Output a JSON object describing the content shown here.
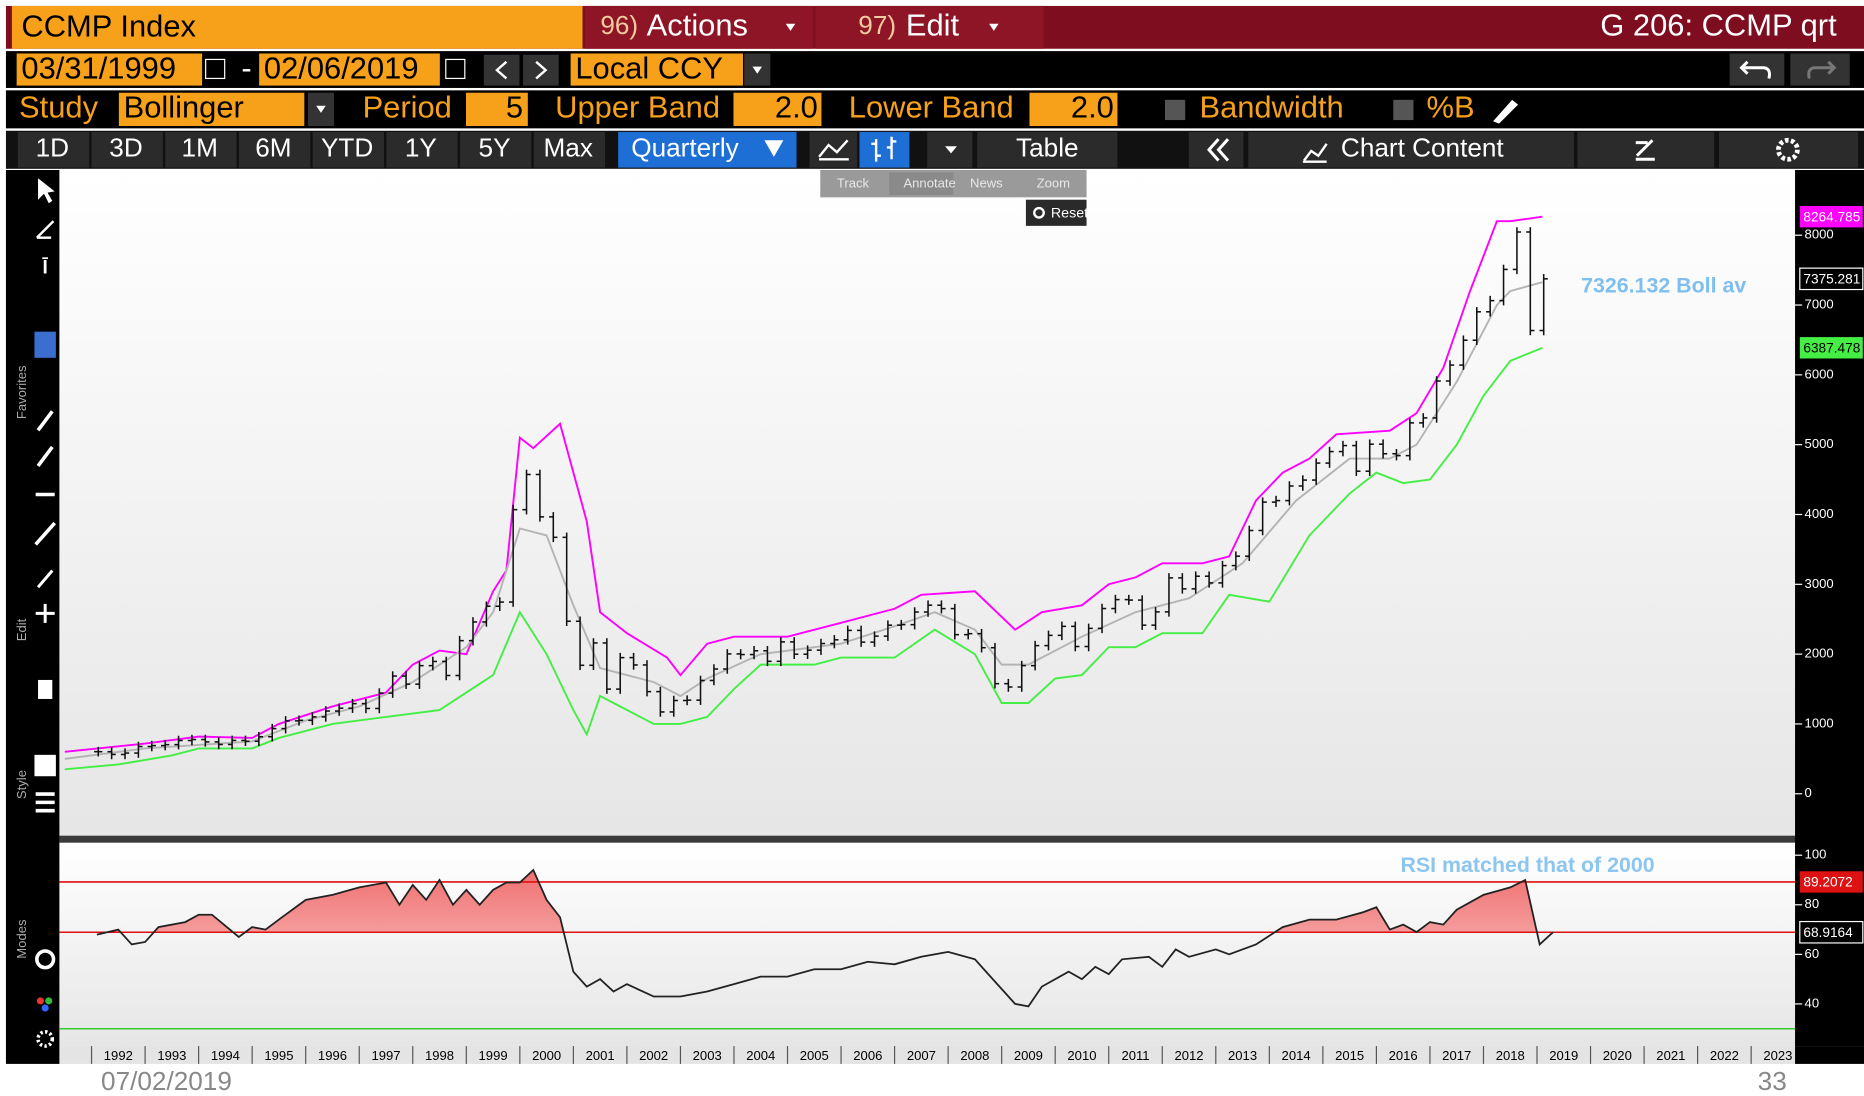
{
  "toolbar": {
    "security": "CCMP Index",
    "actions_num": "96)",
    "actions": "Actions",
    "edit_num": "97)",
    "edit": "Edit",
    "function": "G 206: CCMP qrt",
    "start_date": "03/31/1999",
    "date_sep": "-",
    "end_date": "02/06/2019",
    "currency": "Local CCY",
    "study_label": "Study",
    "study": "Bollinger",
    "period_label": "Period",
    "period": "5",
    "upper_label": "Upper Band",
    "upper": "2.0",
    "lower_label": "Lower Band",
    "lower": "2.0",
    "bandwidth": "Bandwidth",
    "pct_b": "%B",
    "ranges": [
      "1D",
      "3D",
      "1M",
      "6M",
      "YTD",
      "1Y",
      "5Y",
      "Max"
    ],
    "frequency": "Quarterly",
    "table": "Table",
    "chart_content": "Chart Content"
  },
  "popup": [
    "Track",
    "Annotate",
    "News",
    "Zoom"
  ],
  "reset": "Reset",
  "sidebar": [
    "Favorites",
    "Edit",
    "Style",
    "Modes"
  ],
  "footer": {
    "date": "07/02/2019",
    "page": "33"
  },
  "chart_data": [
    {
      "type": "bollinger",
      "annotation": "7326.132 Boll av",
      "xlim": [
        1991.4,
        2023.82
      ],
      "ylim": [
        -600,
        8900
      ],
      "yticks": [
        0,
        1000,
        2000,
        3000,
        4000,
        5000,
        6000,
        7000,
        8000
      ],
      "series": [
        {
          "color": "#111111",
          "x": [
            1992.125,
            1992.375,
            1992.625,
            1992.875,
            1993.125,
            1993.375,
            1993.625,
            1993.875,
            1994.125,
            1994.375,
            1994.625,
            1994.875,
            1995.125,
            1995.375,
            1995.625,
            1995.875,
            1996.125,
            1996.375,
            1996.625,
            1996.875,
            1997.125,
            1997.375,
            1997.625,
            1997.875,
            1998.125,
            1998.375,
            1998.625,
            1998.875,
            1999.125,
            1999.375,
            1999.625,
            1999.875,
            2000.125,
            2000.375,
            2000.625,
            2000.875,
            2001.125,
            2001.375,
            2001.625,
            2001.875,
            2002.125,
            2002.375,
            2002.625,
            2002.875,
            2003.125,
            2003.375,
            2003.625,
            2003.875,
            2004.125,
            2004.375,
            2004.625,
            2004.875,
            2005.125,
            2005.375,
            2005.625,
            2005.875,
            2006.125,
            2006.375,
            2006.625,
            2006.875,
            2007.125,
            2007.375,
            2007.625,
            2007.875,
            2008.125,
            2008.375,
            2008.625,
            2008.875,
            2009.125,
            2009.375,
            2009.625,
            2009.875,
            2010.125,
            2010.375,
            2010.625,
            2010.875,
            2011.125,
            2011.375,
            2011.625,
            2011.875,
            2012.125,
            2012.375,
            2012.625,
            2012.875,
            2013.125,
            2013.375,
            2013.625,
            2013.875,
            2014.125,
            2014.375,
            2014.625,
            2014.875,
            2015.125,
            2015.375,
            2015.625,
            2015.875,
            2016.125,
            2016.375,
            2016.625,
            2016.875,
            2017.125,
            2017.375,
            2017.625,
            2017.875,
            2018.125,
            2018.375,
            2018.625,
            2018.875,
            2019.125
          ],
          "values": [
            603,
            563,
            583,
            677,
            690,
            704,
            763,
            777,
            743,
            706,
            764,
            752,
            817,
            933,
            1044,
            1052,
            1101,
            1185,
            1226,
            1291,
            1222,
            1442,
            1686,
            1570,
            1835,
            1895,
            1694,
            2193,
            2461,
            2686,
            2746,
            4069,
            4573,
            3966,
            3673,
            2471,
            1840,
            2160,
            1499,
            1950,
            1845,
            1463,
            1172,
            1336,
            1341,
            1623,
            1787,
            2003,
            1994,
            2048,
            1897,
            2175,
            1999,
            2057,
            2152,
            2205,
            2340,
            2172,
            2258,
            2415,
            2422,
            2603,
            2701,
            2652,
            2279,
            2293,
            2092,
            1577,
            1529,
            1835,
            2122,
            2269,
            2398,
            2109,
            2369,
            2653,
            2781,
            2774,
            2415,
            2605,
            3092,
            2935,
            3116,
            3020,
            3268,
            3403,
            3771,
            4177,
            4199,
            4408,
            4493,
            4736,
            4901,
            4987,
            4620,
            5007,
            4870,
            4843,
            5312,
            5383,
            5912,
            6140,
            6496,
            6903,
            7063,
            7510,
            8046,
            6635,
            7375.281
          ]
        },
        {
          "color": "#ff00ff",
          "x": [
            1991.5,
            1993,
            1994,
            1995,
            1995.5,
            1996.5,
            1997.5,
            1998,
            1998.5,
            1999,
            1999.5,
            1999.75,
            2000,
            2000.25,
            2000.75,
            2001.25,
            2001.5,
            2002,
            2002.75,
            2003,
            2003.5,
            2004,
            2005,
            2006,
            2007,
            2007.5,
            2008.5,
            2009.25,
            2009.75,
            2010.5,
            2011,
            2011.5,
            2012,
            2012.75,
            2013.25,
            2013.75,
            2014.25,
            2014.75,
            2015.25,
            2016.25,
            2016.75,
            2017.25,
            2017.75,
            2018.25,
            2018.5,
            2019.1
          ],
          "values": [
            600,
            720,
            820,
            800,
            1000,
            1250,
            1450,
            1850,
            2050,
            2000,
            2900,
            3200,
            5100,
            4950,
            5300,
            3900,
            2600,
            2300,
            1950,
            1700,
            2150,
            2250,
            2250,
            2450,
            2650,
            2850,
            2900,
            2350,
            2600,
            2700,
            3000,
            3100,
            3300,
            3300,
            3400,
            4200,
            4600,
            4800,
            5150,
            5200,
            5450,
            6100,
            7200,
            8200,
            8200,
            8264.785
          ]
        },
        {
          "color": "#b4b4b4",
          "x": [
            1991.5,
            1993,
            1995,
            1996,
            1997,
            1998,
            1999,
            1999.5,
            2000,
            2000.5,
            2001,
            2001.5,
            2002.5,
            2003,
            2003.5,
            2004.5,
            2006,
            2007,
            2007.75,
            2008.5,
            2009,
            2009.5,
            2010.5,
            2011.5,
            2012.5,
            2013.5,
            2014.5,
            2015.5,
            2016.25,
            2016.75,
            2017.5,
            2018.25,
            2018.5,
            2019.1
          ],
          "values": [
            500,
            650,
            750,
            1050,
            1250,
            1600,
            2100,
            2600,
            3800,
            3700,
            2700,
            1800,
            1600,
            1400,
            1650,
            2000,
            2150,
            2400,
            2600,
            2350,
            1850,
            1850,
            2250,
            2600,
            2800,
            3300,
            4200,
            4800,
            4800,
            5000,
            5900,
            7000,
            7200,
            7326.132
          ]
        },
        {
          "color": "#44ee44",
          "x": [
            1991.5,
            1992.5,
            1993.5,
            1994,
            1995,
            1995.5,
            1996.5,
            1997.5,
            1998.5,
            1999.5,
            2000,
            2000.5,
            2001,
            2001.25,
            2001.5,
            2002,
            2002.5,
            2003,
            2003.5,
            2004,
            2004.5,
            2005.5,
            2006,
            2007,
            2007.75,
            2008.5,
            2009,
            2009.5,
            2010,
            2010.5,
            2011,
            2011.5,
            2012,
            2012.75,
            2013.25,
            2014,
            2014.75,
            2015.5,
            2016,
            2016.5,
            2017,
            2017.5,
            2018,
            2018.5,
            2019.1
          ],
          "values": [
            350,
            420,
            550,
            650,
            650,
            800,
            1000,
            1100,
            1200,
            1700,
            2600,
            2000,
            1200,
            850,
            1400,
            1200,
            1000,
            1000,
            1100,
            1500,
            1850,
            1850,
            1950,
            1950,
            2350,
            2000,
            1300,
            1300,
            1650,
            1700,
            2100,
            2100,
            2300,
            2300,
            2850,
            2750,
            3700,
            4300,
            4600,
            4450,
            4500,
            5000,
            5700,
            6200,
            6387.478
          ]
        }
      ]
    },
    {
      "type": "line",
      "annotation": "RSI matched that of 2000",
      "xlim": [
        1991.4,
        2023.82
      ],
      "xticks": [
        1992,
        1993,
        1994,
        1995,
        1996,
        1997,
        1998,
        1999,
        2000,
        2001,
        2002,
        2003,
        2004,
        2005,
        2006,
        2007,
        2008,
        2009,
        2010,
        2011,
        2012,
        2013,
        2014,
        2015,
        2016,
        2017,
        2018,
        2019,
        2020,
        2021,
        2022,
        2023
      ],
      "ylim": [
        23,
        105
      ],
      "yticks": [
        40,
        60,
        80,
        100
      ],
      "reference_lines": [
        {
          "value": 89.2072,
          "color": "#dd1111"
        },
        {
          "value": 68.9164,
          "color": "#dd1111"
        },
        {
          "value": 30,
          "color": "#33cc33"
        }
      ],
      "series": [
        {
          "color": "#222222",
          "x": [
            1992.1,
            1992.5,
            1992.75,
            1993,
            1993.25,
            1993.75,
            1994,
            1994.25,
            1994.75,
            1995,
            1995.25,
            1995.5,
            1996,
            1996.5,
            1997,
            1997.5,
            1997.75,
            1998,
            1998.25,
            1998.5,
            1998.75,
            1999,
            1999.25,
            1999.5,
            1999.75,
            2000,
            2000.25,
            2000.5,
            2000.75,
            2001,
            2001.25,
            2001.5,
            2001.75,
            2002,
            2002.5,
            2003,
            2003.5,
            2004,
            2004.5,
            2005,
            2005.5,
            2006,
            2006.5,
            2007,
            2007.5,
            2008,
            2008.5,
            2008.75,
            2009.25,
            2009.5,
            2009.75,
            2010.25,
            2010.5,
            2010.75,
            2011,
            2011.25,
            2011.75,
            2012,
            2012.25,
            2012.5,
            2013,
            2013.25,
            2013.75,
            2014.25,
            2014.75,
            2015.25,
            2015.75,
            2016,
            2016.25,
            2016.5,
            2016.75,
            2017,
            2017.25,
            2017.5,
            2018,
            2018.5,
            2018.78,
            2019.05,
            2019.3
          ],
          "values": [
            68,
            70,
            64,
            65,
            71,
            73,
            76,
            76,
            67,
            71,
            70,
            74,
            82,
            84,
            87,
            89,
            80,
            88,
            82,
            90,
            80,
            86,
            80,
            86,
            89,
            89,
            94,
            82,
            75,
            53,
            47,
            50,
            45,
            48,
            43,
            43,
            45,
            48,
            51,
            51,
            54,
            54,
            57,
            56,
            59,
            61,
            58,
            52,
            40,
            39,
            47,
            53,
            50,
            55,
            52,
            58,
            59,
            55,
            62,
            59,
            62,
            60,
            64,
            71,
            74,
            74,
            77,
            79,
            70,
            72,
            69,
            73,
            72,
            78,
            84,
            87,
            90,
            64,
            68.9164
          ]
        }
      ]
    }
  ]
}
